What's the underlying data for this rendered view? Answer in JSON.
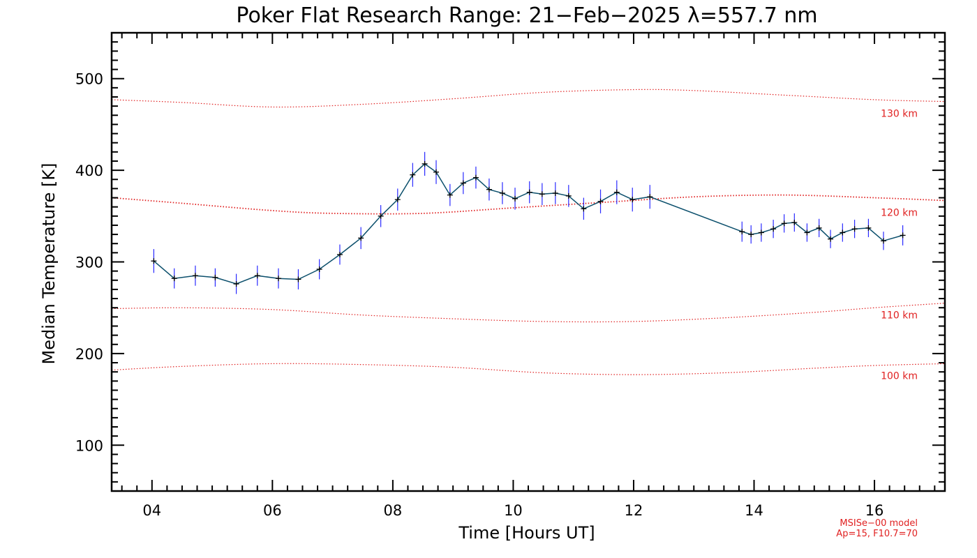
{
  "chart_data": {
    "type": "line",
    "title": "Poker Flat Research Range: 21−Feb−2025 λ=557.7 nm",
    "xlabel": "Time [Hours UT]",
    "ylabel": "Median Temperature [K]",
    "xlim": [
      3.33,
      17.17
    ],
    "ylim": [
      50,
      550
    ],
    "x_ticks": [
      4,
      6,
      8,
      10,
      12,
      14,
      16
    ],
    "x_tick_labels": [
      "04",
      "06",
      "08",
      "10",
      "12",
      "14",
      "16"
    ],
    "y_ticks": [
      100,
      200,
      300,
      400,
      500
    ],
    "y_tick_labels": [
      "100",
      "200",
      "300",
      "400",
      "500"
    ],
    "grid": false,
    "series": [
      {
        "color": "#0b4f6c",
        "error_color": "#2a2aff",
        "marker_color": "#000000",
        "points": [
          [
            4.03,
            301
          ],
          [
            4.37,
            282
          ],
          [
            4.72,
            285
          ],
          [
            5.05,
            283
          ],
          [
            5.4,
            276
          ],
          [
            5.75,
            285
          ],
          [
            6.1,
            282
          ],
          [
            6.43,
            281
          ],
          [
            6.78,
            292
          ],
          [
            7.12,
            308
          ],
          [
            7.47,
            326
          ],
          [
            7.8,
            350
          ],
          [
            8.08,
            368
          ],
          [
            8.33,
            395
          ],
          [
            8.53,
            407
          ],
          [
            8.72,
            398
          ],
          [
            8.95,
            373
          ],
          [
            9.17,
            386
          ],
          [
            9.38,
            392
          ],
          [
            9.6,
            379
          ],
          [
            9.82,
            375
          ],
          [
            10.03,
            369
          ],
          [
            10.27,
            376
          ],
          [
            10.48,
            374
          ],
          [
            10.7,
            375
          ],
          [
            10.92,
            372
          ],
          [
            11.17,
            358
          ],
          [
            11.45,
            366
          ],
          [
            11.72,
            376
          ],
          [
            11.98,
            368
          ],
          [
            12.27,
            371
          ],
          [
            13.8,
            333
          ],
          [
            13.95,
            330
          ],
          [
            14.12,
            332
          ],
          [
            14.32,
            336
          ],
          [
            14.5,
            342
          ],
          [
            14.67,
            343
          ],
          [
            14.88,
            332
          ],
          [
            15.08,
            337
          ],
          [
            15.27,
            325
          ],
          [
            15.47,
            332
          ],
          [
            15.67,
            336
          ],
          [
            15.9,
            337
          ],
          [
            16.15,
            323
          ],
          [
            16.47,
            329
          ]
        ],
        "errors": [
          13,
          11,
          11,
          10,
          11,
          11,
          11,
          11,
          11,
          11,
          12,
          12,
          12,
          13,
          13,
          13,
          12,
          12,
          12,
          12,
          12,
          12,
          12,
          12,
          12,
          12,
          12,
          13,
          13,
          13,
          13,
          11,
          10,
          10,
          10,
          10,
          10,
          10,
          10,
          10,
          10,
          10,
          10,
          10,
          11
        ]
      }
    ],
    "model_curves": [
      {
        "label": "130 km",
        "color": "#e02020",
        "points": [
          [
            3.33,
            477
          ],
          [
            4.5,
            474
          ],
          [
            6.0,
            469
          ],
          [
            7.5,
            472
          ],
          [
            9.0,
            478
          ],
          [
            10.5,
            485
          ],
          [
            12.0,
            488
          ],
          [
            13.0,
            487
          ],
          [
            14.5,
            482
          ],
          [
            16.0,
            477
          ],
          [
            17.17,
            475
          ]
        ]
      },
      {
        "label": "120 km",
        "color": "#e02020",
        "points": [
          [
            3.33,
            370
          ],
          [
            4.5,
            364
          ],
          [
            6.0,
            356
          ],
          [
            7.0,
            353
          ],
          [
            8.5,
            353
          ],
          [
            10.0,
            359
          ],
          [
            11.5,
            365
          ],
          [
            13.0,
            371
          ],
          [
            14.5,
            373
          ],
          [
            16.0,
            370
          ],
          [
            17.17,
            367
          ]
        ]
      },
      {
        "label": "110 km",
        "color": "#e02020",
        "points": [
          [
            3.33,
            249
          ],
          [
            4.5,
            250
          ],
          [
            6.0,
            248
          ],
          [
            7.5,
            242
          ],
          [
            9.0,
            238
          ],
          [
            10.5,
            235
          ],
          [
            12.0,
            235
          ],
          [
            13.5,
            239
          ],
          [
            15.0,
            245
          ],
          [
            16.0,
            250
          ],
          [
            17.17,
            255
          ]
        ]
      },
      {
        "label": "100 km",
        "color": "#e02020",
        "points": [
          [
            3.33,
            182
          ],
          [
            4.5,
            186
          ],
          [
            6.0,
            189
          ],
          [
            7.5,
            188
          ],
          [
            9.0,
            185
          ],
          [
            10.5,
            179
          ],
          [
            12.0,
            177
          ],
          [
            13.5,
            179
          ],
          [
            15.0,
            184
          ],
          [
            16.0,
            187
          ],
          [
            17.17,
            189
          ]
        ]
      }
    ],
    "model_note_lines": [
      "MSISe−00 model",
      "Ap=15, F10.7=70"
    ]
  }
}
